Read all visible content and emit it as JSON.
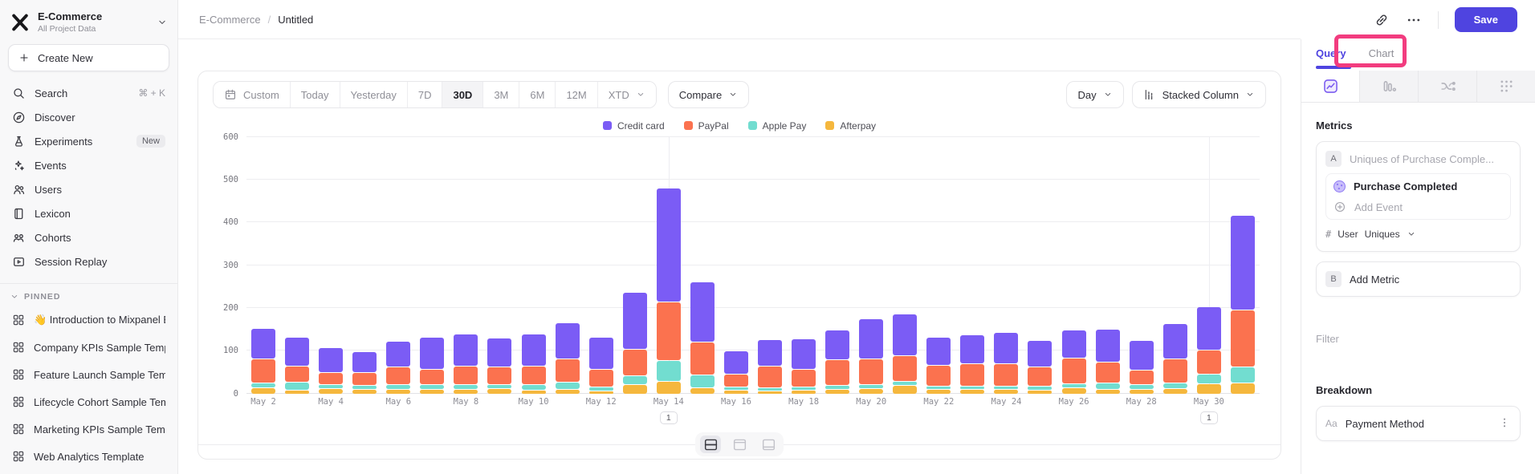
{
  "app": {
    "accent": "#4f44e0",
    "highlight_pink": "#f23c7f"
  },
  "sidebar": {
    "project_name": "E-Commerce",
    "project_scope": "All Project Data",
    "create_new_label": "Create New",
    "nav_items": [
      {
        "label": "Search",
        "icon": "search",
        "shortcut": "⌘ + K"
      },
      {
        "label": "Discover",
        "icon": "discover"
      },
      {
        "label": "Experiments",
        "icon": "experiments",
        "badge": "New"
      },
      {
        "label": "Events",
        "icon": "events"
      },
      {
        "label": "Users",
        "icon": "users"
      },
      {
        "label": "Lexicon",
        "icon": "lexicon"
      },
      {
        "label": "Cohorts",
        "icon": "cohorts"
      },
      {
        "label": "Session Replay",
        "icon": "session-replay"
      }
    ],
    "pinned_header": "PINNED",
    "pinned_items": [
      "👋 Introduction to Mixpanel Bo",
      "Company KPIs Sample Templat",
      "Feature Launch Sample Templa",
      "Lifecycle Cohort Sample Temp",
      "Marketing KPIs Sample Templat",
      "Web Analytics Template"
    ]
  },
  "header": {
    "breadcrumb": [
      "E-Commerce",
      "Untitled"
    ],
    "save_label": "Save"
  },
  "toolbar": {
    "date_ranges": [
      {
        "label": "Custom",
        "icon": "calendar"
      },
      {
        "label": "Today"
      },
      {
        "label": "Yesterday"
      },
      {
        "label": "7D"
      },
      {
        "label": "30D",
        "active": true
      },
      {
        "label": "3M"
      },
      {
        "label": "6M"
      },
      {
        "label": "12M"
      },
      {
        "label": "XTD",
        "chevron": true
      }
    ],
    "compare_label": "Compare",
    "granularity_label": "Day",
    "chart_type_label": "Stacked Column"
  },
  "chart_data": {
    "type": "bar",
    "stacked": true,
    "title": "",
    "xlabel": "",
    "ylabel": "",
    "ylim": [
      0,
      600
    ],
    "yticks": [
      0,
      100,
      200,
      300,
      400,
      500,
      600
    ],
    "grid": true,
    "legend_position": "top",
    "x": [
      "May 2",
      "May 3",
      "May 4",
      "May 5",
      "May 6",
      "May 7",
      "May 8",
      "May 9",
      "May 10",
      "May 11",
      "May 12",
      "May 13",
      "May 14",
      "May 15",
      "May 16",
      "May 17",
      "May 18",
      "May 19",
      "May 20",
      "May 21",
      "May 22",
      "May 23",
      "May 24",
      "May 25",
      "May 26",
      "May 27",
      "May 28",
      "May 29",
      "May 30",
      "May 31"
    ],
    "tick_every": 2,
    "stack_order_bottom_to_top": [
      "Afterpay",
      "Apple Pay",
      "PayPal",
      "Credit card"
    ],
    "series": [
      {
        "name": "Credit card",
        "color": "#7b5cf5",
        "values": [
          70,
          65,
          56,
          47,
          58,
          74,
          73,
          65,
          73,
          82,
          73,
          132,
          265,
          138,
          53,
          60,
          70,
          68,
          91,
          96,
          64,
          65,
          71,
          60,
          64,
          75,
          68,
          81,
          100,
          220
        ]
      },
      {
        "name": "PayPal",
        "color": "#fb724f",
        "values": [
          54,
          36,
          27,
          28,
          40,
          34,
          42,
          40,
          42,
          53,
          39,
          60,
          135,
          75,
          29,
          48,
          39,
          58,
          58,
          58,
          47,
          50,
          50,
          44,
          58,
          46,
          31,
          55,
          55,
          132
        ]
      },
      {
        "name": "Apple Pay",
        "color": "#72ddd0",
        "values": [
          10,
          16,
          8,
          7,
          10,
          10,
          10,
          8,
          12,
          15,
          8,
          18,
          47,
          29,
          6,
          6,
          5,
          8,
          8,
          8,
          6,
          5,
          6,
          8,
          8,
          14,
          10,
          12,
          21,
          36
        ]
      },
      {
        "name": "Afterpay",
        "color": "#f5b73d",
        "values": [
          14,
          8,
          12,
          10,
          10,
          10,
          10,
          12,
          8,
          10,
          5,
          20,
          28,
          14,
          8,
          6,
          8,
          10,
          12,
          18,
          10,
          10,
          10,
          8,
          14,
          10,
          10,
          12,
          22,
          24
        ]
      }
    ],
    "annotations": [
      {
        "x": "May 14",
        "label": "1"
      },
      {
        "x": "May 30",
        "label": "1"
      }
    ]
  },
  "layout_toggle": {
    "options": [
      {
        "icon": "layout-split-horizontal",
        "active": true
      },
      {
        "icon": "layout-panel-top"
      },
      {
        "icon": "layout-panel-bottom"
      }
    ]
  },
  "query_panel": {
    "tabs": [
      {
        "label": "Query",
        "active": true
      },
      {
        "label": "Chart",
        "active": false,
        "highlighted": true
      }
    ],
    "view_tabs": [
      {
        "icon": "insights",
        "active": true
      },
      {
        "icon": "funnels"
      },
      {
        "icon": "flows"
      },
      {
        "icon": "retention"
      }
    ],
    "metrics": {
      "header": "Metrics",
      "metric_a": {
        "badge": "A",
        "summary": "Uniques of Purchase Comple...",
        "event": "Purchase Completed",
        "add_event_label": "Add Event",
        "aggregation_prefix": "#",
        "aggregation_entity": "User",
        "aggregation": "Uniques"
      },
      "metric_b": {
        "badge": "B",
        "label": "Add Metric"
      }
    },
    "filter": {
      "header": "Filter"
    },
    "breakdown": {
      "header": "Breakdown",
      "item": {
        "type_label": "Aa",
        "label": "Payment Method"
      }
    }
  }
}
